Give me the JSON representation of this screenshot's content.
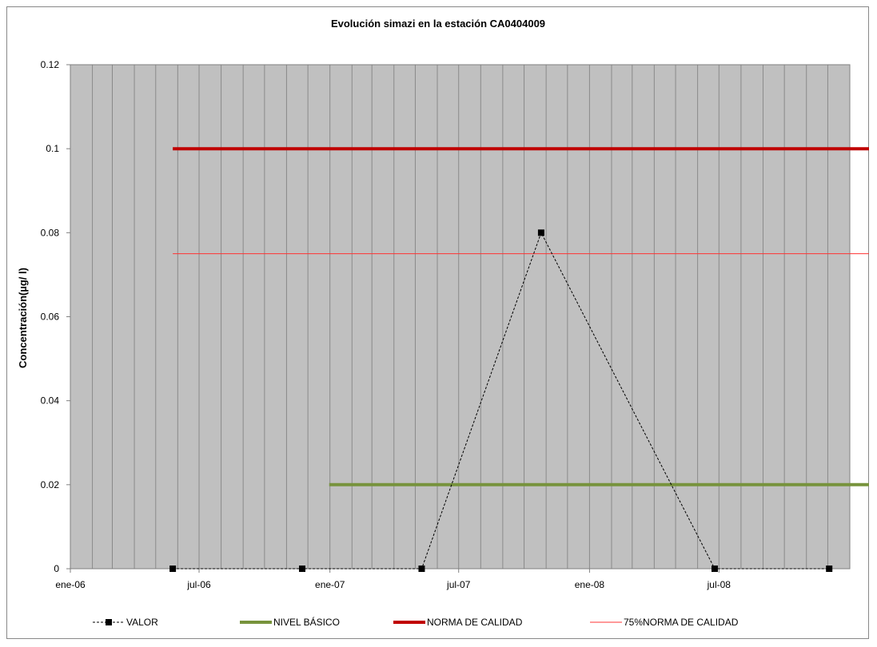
{
  "chart_data": {
    "type": "line",
    "title": "Evolución simazi en la estación CA0404009",
    "xlabel": "",
    "ylabel": "Concentración(µg/ l)",
    "x_tick_labels": [
      "ene-06",
      "jul-06",
      "ene-07",
      "jul-07",
      "ene-08",
      "jul-08"
    ],
    "x_tick_dates": [
      "2006-01-01",
      "2006-07-01",
      "2007-01-01",
      "2007-07-01",
      "2008-01-01",
      "2008-07-01"
    ],
    "xlim": [
      "2006-01-01",
      "2008-12-31"
    ],
    "ylim": [
      0,
      0.12
    ],
    "y_ticks": [
      0,
      0.02,
      0.04,
      0.06,
      0.08,
      0.1,
      0.12
    ],
    "y_tick_labels": [
      "0",
      "0.02",
      "0.04",
      "0.06",
      "0.08",
      "0.1",
      "0.12"
    ],
    "grid": "vertical monthly gridlines",
    "plot_background": "#c0c0c0",
    "legend_position": "bottom",
    "series": [
      {
        "name": "VALOR",
        "style": "dotted-line-square-markers",
        "color": "#000000",
        "x": [
          "2006-05-25",
          "2006-11-23",
          "2007-05-10",
          "2007-10-25",
          "2008-06-25",
          "2008-12-03"
        ],
        "y": [
          0,
          0,
          0,
          0.08,
          0,
          0
        ]
      },
      {
        "name": "NIVEL BÁSICO",
        "style": "thick-line",
        "color": "#77933c",
        "x": [
          "2006-12-31",
          "2009-01-28"
        ],
        "y": [
          0.02,
          0.02
        ]
      },
      {
        "name": "NORMA DE CALIDAD",
        "style": "thick-line",
        "color": "#c00000",
        "x": [
          "2006-05-25",
          "2009-01-28"
        ],
        "y": [
          0.1,
          0.1
        ]
      },
      {
        "name": "75%NORMA DE CALIDAD",
        "style": "thin-line",
        "color": "#ff3333",
        "x": [
          "2006-05-25",
          "2009-01-28"
        ],
        "y": [
          0.075,
          0.075
        ]
      }
    ]
  }
}
